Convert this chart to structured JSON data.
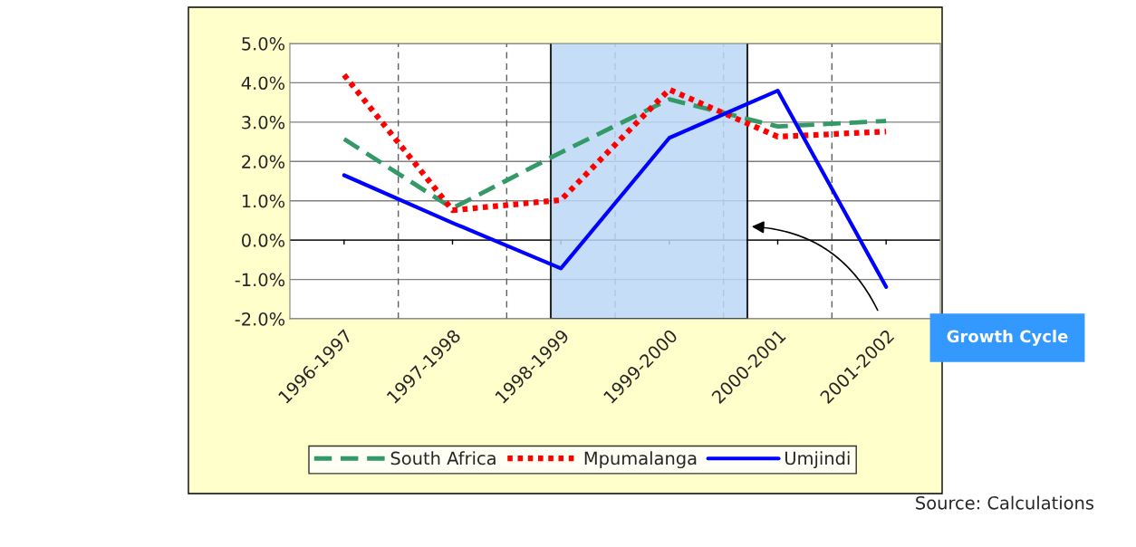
{
  "chart_data": {
    "type": "line",
    "categories": [
      "1996-1997",
      "1997-1998",
      "1998-1999",
      "1999-2000",
      "2000-2001",
      "2001-2002"
    ],
    "series": [
      {
        "name": "South Africa",
        "color": "#339966",
        "line_style": "dashed",
        "values": [
          2.57,
          0.81,
          2.23,
          3.58,
          2.89,
          3.03
        ]
      },
      {
        "name": "Mpumalanga",
        "color": "#ff0000",
        "line_style": "dotted",
        "values": [
          4.2,
          0.76,
          1.02,
          3.83,
          2.63,
          2.76
        ]
      },
      {
        "name": "Umjindi",
        "color": "#0000ff",
        "line_style": "solid",
        "values": [
          1.65,
          0.44,
          -0.72,
          2.6,
          3.8,
          -1.19
        ]
      }
    ],
    "ylim": [
      -2,
      5
    ],
    "yticks": [
      {
        "value": -2,
        "label": "-2.0%"
      },
      {
        "value": -1,
        "label": "-1.0%"
      },
      {
        "value": 0,
        "label": "0.0%"
      },
      {
        "value": 1,
        "label": "1.0%"
      },
      {
        "value": 2,
        "label": "2.0%"
      },
      {
        "value": 3,
        "label": "3.0%"
      },
      {
        "value": 4,
        "label": "4.0%"
      },
      {
        "value": 5,
        "label": "5.0%"
      }
    ],
    "grid": true,
    "legend": "bottom",
    "marker": "none",
    "annotations": [
      "Growth Cycle",
      "Source: Calculations"
    ]
  }
}
